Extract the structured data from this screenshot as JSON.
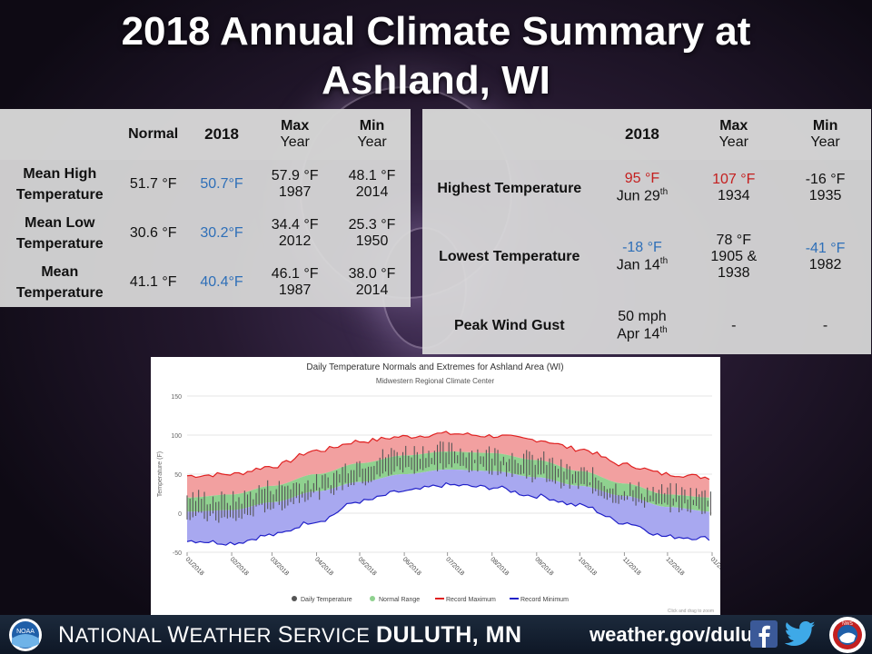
{
  "title": {
    "line1": "2018 Annual Climate Summary at",
    "line2": "Ashland, WI"
  },
  "left_table": {
    "headers": {
      "normal": "Normal",
      "year": "2018",
      "max_top": "Max",
      "max_sub": "Year",
      "min_top": "Min",
      "min_sub": "Year"
    },
    "rows": [
      {
        "label1": "Mean High",
        "label2": "Temperature",
        "normal": "51.7 °F",
        "y2018": "50.7°F",
        "max_val": "57.9 °F",
        "max_year": "1987",
        "min_val": "48.1 °F",
        "min_year": "2014"
      },
      {
        "label1": "Mean Low",
        "label2": "Temperature",
        "normal": "30.6 °F",
        "y2018": "30.2°F",
        "max_val": "34.4 °F",
        "max_year": "2012",
        "min_val": "25.3 °F",
        "min_year": "1950"
      },
      {
        "label1": "Mean",
        "label2": "Temperature",
        "normal": "41.1 °F",
        "y2018": "40.4°F",
        "max_val": "46.1 °F",
        "max_year": "1987",
        "min_val": "38.0 °F",
        "min_year": "2014"
      }
    ]
  },
  "right_table": {
    "headers": {
      "year": "2018",
      "max_top": "Max",
      "max_sub": "Year",
      "min_top": "Min",
      "min_sub": "Year"
    },
    "rows": [
      {
        "label": "Highest Temperature",
        "v2018": "95 °F",
        "d2018": "Jun 29",
        "d2018_sup": "th",
        "max_val": "107 °F",
        "max_year": "1934",
        "min_val": "-16 °F",
        "min_year": "1935"
      },
      {
        "label": "Lowest Temperature",
        "v2018": "-18 °F",
        "d2018": "Jan 14",
        "d2018_sup": "th",
        "max_val": "78 °F",
        "max_year": "1905 &",
        "max_year2": "1938",
        "min_val": "-41 °F",
        "min_year": "1982"
      },
      {
        "label": "Peak Wind Gust",
        "v2018": "50 mph",
        "d2018": "Apr 14",
        "d2018_sup": "th",
        "max_val": "-",
        "min_val": "-"
      }
    ]
  },
  "chart_data": {
    "type": "area",
    "title": "Daily Temperature Normals and Extremes for Ashland Area (WI)",
    "subtitle": "Midwestern Regional Climate Center",
    "ylabel": "Temperature (F)",
    "ylim": [
      -50,
      150
    ],
    "yticks": [
      150,
      100,
      50,
      0,
      -50
    ],
    "xticks": [
      "01/2018",
      "02/2018",
      "03/2018",
      "04/2018",
      "05/2018",
      "06/2018",
      "07/2018",
      "08/2018",
      "09/2018",
      "10/2018",
      "11/2018",
      "12/2018",
      "01/2019"
    ],
    "month_points": [
      1,
      32,
      60,
      91,
      121,
      152,
      182,
      213,
      244,
      274,
      305,
      335,
      366
    ],
    "record_max": [
      48,
      50,
      60,
      80,
      92,
      98,
      102,
      99,
      94,
      82,
      62,
      50,
      46
    ],
    "normal_high": [
      20,
      24,
      35,
      50,
      64,
      74,
      79,
      77,
      68,
      54,
      38,
      24,
      20
    ],
    "normal_low": [
      2,
      4,
      14,
      28,
      40,
      50,
      56,
      54,
      46,
      35,
      22,
      8,
      2
    ],
    "record_min": [
      -35,
      -38,
      -28,
      -10,
      15,
      28,
      36,
      33,
      22,
      10,
      -12,
      -30,
      -32
    ],
    "daily_high": [
      22,
      18,
      34,
      40,
      66,
      80,
      82,
      78,
      70,
      52,
      32,
      28,
      24
    ],
    "daily_low": [
      -5,
      -8,
      8,
      24,
      40,
      56,
      60,
      56,
      46,
      34,
      16,
      8,
      4
    ],
    "legend": [
      "Daily Temperature",
      "Normal Range",
      "Record Maximum",
      "Record Minimum"
    ],
    "footnote": "Click and drag to zoom",
    "colors": {
      "daily": "#555555",
      "normal": "#8fd18f",
      "record_max": "#e02020",
      "record_min": "#2020c8",
      "band_max": "#f2a0a0",
      "band_min": "#a8a8f0"
    }
  },
  "footer": {
    "org_prefix": "N",
    "org_rest1": "ATIONAL ",
    "org_w": "W",
    "org_rest2": "EATHER ",
    "org_s": "S",
    "org_rest3": "ERVICE ",
    "office": "DULUTH, MN",
    "site": "weather.gov/duluth",
    "noaa_label": "NOAA",
    "nws_label": "NWS"
  }
}
